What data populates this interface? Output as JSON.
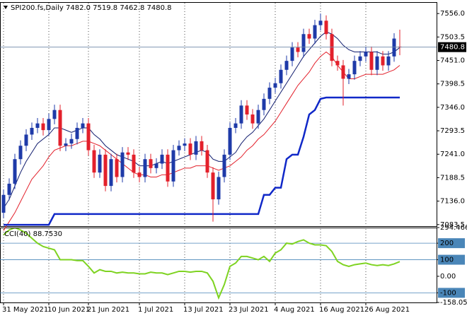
{
  "chart_data": [
    {
      "type": "candlestick",
      "title": "SPI200.fs,Daily  7482.0 7519.8 7462.8 7480.8",
      "categories": [
        "31 May 2021",
        null,
        null,
        null,
        null,
        null,
        null,
        null,
        "10 Jun 2021",
        null,
        null,
        null,
        null,
        null,
        null,
        "21 Jun 2021",
        null,
        null,
        null,
        null,
        null,
        null,
        null,
        null,
        "1 Jul 2021",
        null,
        null,
        null,
        null,
        null,
        null,
        null,
        "13 Jul 2021",
        null,
        null,
        null,
        null,
        null,
        null,
        null,
        "23 Jul 2021",
        null,
        null,
        null,
        null,
        null,
        null,
        null,
        "4 Aug 2021",
        null,
        null,
        null,
        null,
        null,
        null,
        null,
        "16 Aug 2021",
        null,
        null,
        null,
        null,
        null,
        null,
        null,
        "26 Aug 2021",
        null,
        null,
        null,
        null,
        null,
        null
      ],
      "open": [
        7110,
        7150,
        7175,
        7230,
        7260,
        7285,
        7300,
        7310,
        7295,
        7320,
        7340,
        7260,
        7265,
        7275,
        7300,
        7310,
        7250,
        7200,
        7240,
        7170,
        7230,
        7190,
        7245,
        7240,
        7200,
        7190,
        7230,
        7210,
        7220,
        7240,
        7180,
        7250,
        7260,
        7265,
        7240,
        7270,
        7250,
        7200,
        7140,
        7190,
        7240,
        7300,
        7310,
        7350,
        7330,
        7310,
        7340,
        7365,
        7390,
        7400,
        7430,
        7450,
        7480,
        7470,
        7510,
        7500,
        7530,
        7540,
        7510,
        7450,
        7440,
        7410,
        7420,
        7450,
        7460,
        7470,
        7430,
        7460,
        7440,
        7460,
        7482
      ],
      "high": [
        7162,
        7187,
        7242,
        7272,
        7297,
        7312,
        7322,
        7322,
        7332,
        7352,
        7352,
        7277,
        7287,
        7312,
        7322,
        7322,
        7262,
        7252,
        7252,
        7242,
        7242,
        7257,
        7257,
        7252,
        7212,
        7242,
        7242,
        7232,
        7252,
        7252,
        7262,
        7272,
        7277,
        7277,
        7282,
        7282,
        7262,
        7212,
        7202,
        7252,
        7312,
        7322,
        7362,
        7362,
        7342,
        7352,
        7377,
        7402,
        7412,
        7442,
        7462,
        7492,
        7492,
        7522,
        7522,
        7542,
        7556,
        7552,
        7522,
        7462,
        7452,
        7432,
        7462,
        7472,
        7482,
        7482,
        7472,
        7472,
        7472,
        7512,
        7519.8
      ],
      "low": [
        7098,
        7138,
        7163,
        7218,
        7248,
        7273,
        7288,
        7283,
        7283,
        7308,
        7248,
        7248,
        7253,
        7263,
        7288,
        7238,
        7188,
        7188,
        7158,
        7158,
        7178,
        7178,
        7228,
        7188,
        7178,
        7178,
        7198,
        7198,
        7208,
        7168,
        7168,
        7238,
        7248,
        7228,
        7228,
        7238,
        7188,
        7090,
        7128,
        7178,
        7228,
        7288,
        7298,
        7318,
        7298,
        7298,
        7328,
        7353,
        7378,
        7388,
        7418,
        7438,
        7458,
        7458,
        7488,
        7488,
        7518,
        7498,
        7438,
        7428,
        7350,
        7398,
        7408,
        7438,
        7448,
        7418,
        7418,
        7428,
        7428,
        7448,
        7462.8
      ],
      "close": [
        7150,
        7175,
        7230,
        7260,
        7285,
        7300,
        7310,
        7295,
        7320,
        7340,
        7260,
        7265,
        7275,
        7300,
        7310,
        7250,
        7200,
        7240,
        7170,
        7230,
        7190,
        7245,
        7240,
        7200,
        7190,
        7230,
        7210,
        7220,
        7240,
        7180,
        7250,
        7260,
        7265,
        7240,
        7270,
        7250,
        7200,
        7140,
        7190,
        7240,
        7300,
        7310,
        7350,
        7330,
        7310,
        7340,
        7365,
        7390,
        7400,
        7430,
        7450,
        7480,
        7470,
        7510,
        7500,
        7530,
        7540,
        7510,
        7450,
        7440,
        7410,
        7420,
        7450,
        7460,
        7470,
        7430,
        7460,
        7440,
        7460,
        7500,
        7480.8
      ],
      "up_color": "#1e3aa8",
      "down_color": "#e3202b",
      "overlays": [
        {
          "color": "#e3202b",
          "width": 1,
          "values": [
            7070,
            7090,
            7110,
            7135,
            7160,
            7185,
            7200,
            7215,
            7235,
            7250,
            7255,
            7260,
            7260,
            7265,
            7270,
            7270,
            7265,
            7260,
            7250,
            7240,
            7230,
            7220,
            7210,
            7200,
            7195,
            7195,
            7190,
            7190,
            7195,
            7195,
            7200,
            7205,
            7210,
            7210,
            7215,
            7215,
            7215,
            7210,
            7205,
            7210,
            7215,
            7225,
            7235,
            7250,
            7260,
            7275,
            7285,
            7300,
            7315,
            7335,
            7355,
            7375,
            7395,
            7410,
            7425,
            7445,
            7460,
            7470,
            7460,
            7440,
            7425,
            7410,
            7410,
            7415,
            7420,
            7420,
            7420,
            7420,
            7425,
            7430,
            7440
          ]
        },
        {
          "color": "#101c6e",
          "width": 1,
          "values": [
            7120,
            7140,
            7170,
            7200,
            7225,
            7245,
            7265,
            7275,
            7285,
            7300,
            7300,
            7295,
            7290,
            7295,
            7300,
            7300,
            7285,
            7275,
            7260,
            7250,
            7240,
            7235,
            7230,
            7225,
            7215,
            7215,
            7215,
            7220,
            7225,
            7220,
            7225,
            7230,
            7235,
            7240,
            7245,
            7250,
            7245,
            7230,
            7225,
            7225,
            7235,
            7245,
            7265,
            7280,
            7290,
            7305,
            7320,
            7340,
            7360,
            7380,
            7400,
            7420,
            7440,
            7460,
            7475,
            7490,
            7505,
            7515,
            7510,
            7500,
            7485,
            7475,
            7470,
            7470,
            7470,
            7470,
            7470,
            7465,
            7465,
            7470,
            7480
          ]
        },
        {
          "color": "#1028c8",
          "width": 2.5,
          "values": [
            7083,
            7083,
            7083,
            7083,
            7083,
            7083,
            7083,
            7083,
            7083,
            7107,
            7107,
            7107,
            7107,
            7107,
            7107,
            7107,
            7107,
            7107,
            7107,
            7107,
            7107,
            7107,
            7107,
            7107,
            7107,
            7107,
            7107,
            7107,
            7107,
            7107,
            7107,
            7107,
            7107,
            7107,
            7107,
            7107,
            7107,
            7107,
            7107,
            7107,
            7107,
            7107,
            7107,
            7107,
            7107,
            7107,
            7150,
            7150,
            7166,
            7166,
            7230,
            7240,
            7240,
            7280,
            7330,
            7340,
            7365,
            7368,
            7368,
            7368,
            7368,
            7368,
            7368,
            7368,
            7368,
            7368,
            7368,
            7368,
            7368,
            7368,
            7368
          ]
        }
      ],
      "last_price": {
        "value": 7480.8,
        "label": "7480.8"
      },
      "ylim": [
        7080,
        7580
      ],
      "yticks": [
        {
          "value": 7556,
          "label": "7556.0"
        },
        {
          "value": 7503.5,
          "label": "7503.5"
        },
        {
          "value": 7451,
          "label": "7451.0"
        },
        {
          "value": 7398.5,
          "label": "7398.5"
        },
        {
          "value": 7346,
          "label": "7346.0"
        },
        {
          "value": 7293.5,
          "label": "7293.5"
        },
        {
          "value": 7241,
          "label": "7241.0"
        },
        {
          "value": 7188.5,
          "label": "7188.5"
        },
        {
          "value": 7136,
          "label": "7136.0"
        },
        {
          "value": 7083.5,
          "label": "7083.5"
        }
      ],
      "vgrid": true
    },
    {
      "type": "line",
      "title": "CCI(40) 88.7530",
      "color": "#7ed321",
      "values": [
        250,
        280,
        294,
        280,
        260,
        230,
        200,
        180,
        170,
        160,
        100,
        100,
        100,
        95,
        95,
        60,
        20,
        40,
        30,
        30,
        20,
        25,
        20,
        20,
        15,
        15,
        25,
        20,
        20,
        10,
        20,
        30,
        30,
        25,
        30,
        30,
        20,
        -30,
        -130,
        -50,
        60,
        80,
        120,
        120,
        110,
        100,
        120,
        90,
        140,
        160,
        200,
        195,
        210,
        220,
        200,
        190,
        190,
        185,
        150,
        90,
        70,
        60,
        70,
        75,
        80,
        70,
        65,
        70,
        65,
        75,
        88.753
      ],
      "ylim": [
        -158.056,
        294.4668
      ],
      "yticks": [
        294.4668,
        200,
        100,
        {
          "value": 0,
          "label": "0.00"
        },
        -100,
        -158.056
      ],
      "levels": [
        200,
        100,
        -100
      ],
      "level_color": "#4a86b8"
    }
  ]
}
